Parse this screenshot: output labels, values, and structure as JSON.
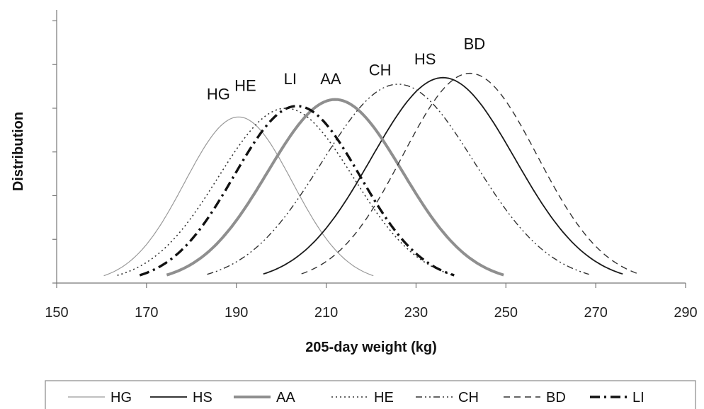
{
  "chart_data": {
    "type": "line",
    "xlabel": "205-day weight (kg)",
    "ylabel": "Distribution",
    "xlim": [
      150,
      290
    ],
    "xticks": [
      150,
      170,
      190,
      210,
      230,
      250,
      270,
      290
    ],
    "ylim": [
      0,
      1.25
    ],
    "yticks": [
      0,
      0.2,
      0.4,
      0.6,
      0.8,
      1.0,
      1.2
    ],
    "grid": false,
    "legend": "bottom",
    "series": [
      {
        "name": "HG",
        "mean": 190.5,
        "sd": 12,
        "peak": 0.76,
        "label_x": 186,
        "label_y": 0.84,
        "color": "#9a9a9a",
        "dash": "",
        "width": 1.2
      },
      {
        "name": "HS",
        "mean": 236,
        "sd": 16,
        "peak": 0.94,
        "label_x": 232,
        "label_y": 1.0,
        "color": "#1a1a1a",
        "dash": "",
        "width": 1.8
      },
      {
        "name": "AA",
        "mean": 212,
        "sd": 15,
        "peak": 0.84,
        "label_x": 211,
        "label_y": 0.91,
        "color": "#8f8f8f",
        "dash": "",
        "width": 4
      },
      {
        "name": "HE",
        "mean": 201,
        "sd": 15,
        "peak": 0.8,
        "label_x": 192,
        "label_y": 0.88,
        "color": "#333333",
        "dash": "2,4",
        "width": 1.6
      },
      {
        "name": "CH",
        "mean": 226,
        "sd": 17,
        "peak": 0.91,
        "label_x": 222,
        "label_y": 0.95,
        "color": "#333333",
        "dash": "9,4,2,4,2,4",
        "width": 1.4
      },
      {
        "name": "BD",
        "mean": 242,
        "sd": 15,
        "peak": 0.96,
        "label_x": 243,
        "label_y": 1.07,
        "color": "#333333",
        "dash": "9,6",
        "width": 1.4
      },
      {
        "name": "LI",
        "mean": 203.5,
        "sd": 14,
        "peak": 0.81,
        "label_x": 202,
        "label_y": 0.91,
        "color": "#111111",
        "dash": "14,6,3,6",
        "width": 3.4
      }
    ]
  }
}
